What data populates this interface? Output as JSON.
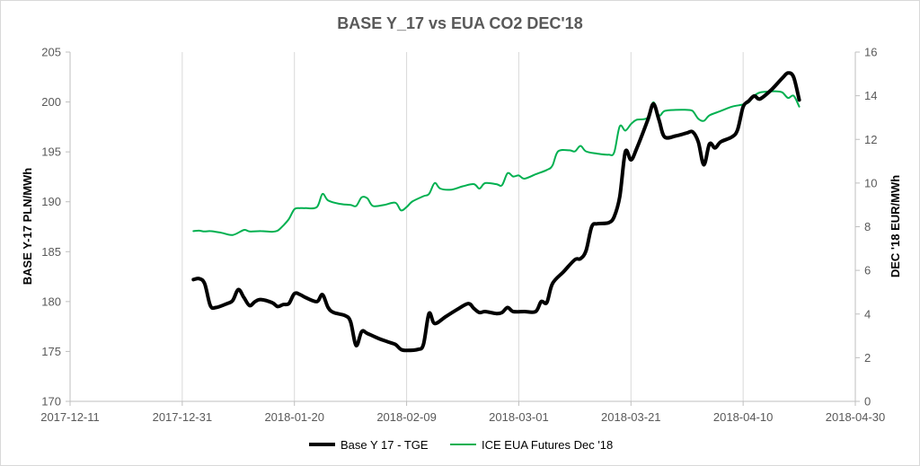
{
  "chart_data": {
    "type": "line",
    "title": "BASE Y_17 vs EUA CO2 DEC'18",
    "ylabel": "BASE Y-17 PLN/MWh",
    "y2label": "DEC '18  EUR/MWh",
    "ylim": [
      170,
      205
    ],
    "y2lim": [
      0,
      16
    ],
    "yticks": [
      "170",
      "175",
      "180",
      "185",
      "190",
      "195",
      "200",
      "205"
    ],
    "y2ticks": [
      "0",
      "2",
      "4",
      "6",
      "8",
      "10",
      "12",
      "14",
      "16"
    ],
    "xlim": [
      "2017-12-11",
      "2018-04-30"
    ],
    "xticks": [
      "2017-12-11",
      "2017-12-31",
      "2018-01-20",
      "2018-02-09",
      "2018-03-01",
      "2018-03-21",
      "2018-04-10",
      "2018-04-30"
    ],
    "grid": "vertical",
    "legend_position": "bottom",
    "series": [
      {
        "name": "Base Y 17 - TGE",
        "axis": "left",
        "color": "#000000",
        "points": [
          [
            "2018-01-02",
            182.2
          ],
          [
            "2018-01-03",
            182.3
          ],
          [
            "2018-01-04",
            181.8
          ],
          [
            "2018-01-05",
            179.6
          ],
          [
            "2018-01-06",
            179.4
          ],
          [
            "2018-01-08",
            179.8
          ],
          [
            "2018-01-09",
            180.1
          ],
          [
            "2018-01-10",
            181.2
          ],
          [
            "2018-01-11",
            180.4
          ],
          [
            "2018-01-12",
            179.6
          ],
          [
            "2018-01-13",
            180.0
          ],
          [
            "2018-01-14",
            180.2
          ],
          [
            "2018-01-16",
            179.9
          ],
          [
            "2018-01-17",
            179.5
          ],
          [
            "2018-01-18",
            179.7
          ],
          [
            "2018-01-19",
            179.8
          ],
          [
            "2018-01-20",
            180.8
          ],
          [
            "2018-01-21",
            180.7
          ],
          [
            "2018-01-22",
            180.4
          ],
          [
            "2018-01-24",
            180.0
          ],
          [
            "2018-01-25",
            180.7
          ],
          [
            "2018-01-26",
            179.4
          ],
          [
            "2018-01-27",
            178.9
          ],
          [
            "2018-01-29",
            178.6
          ],
          [
            "2018-01-30",
            178.0
          ],
          [
            "2018-01-31",
            175.6
          ],
          [
            "2018-02-01",
            177.0
          ],
          [
            "2018-02-02",
            176.8
          ],
          [
            "2018-02-04",
            176.3
          ],
          [
            "2018-02-06",
            175.9
          ],
          [
            "2018-02-07",
            175.7
          ],
          [
            "2018-02-08",
            175.2
          ],
          [
            "2018-02-09",
            175.1
          ],
          [
            "2018-02-11",
            175.2
          ],
          [
            "2018-02-12",
            175.7
          ],
          [
            "2018-02-13",
            178.8
          ],
          [
            "2018-02-14",
            177.8
          ],
          [
            "2018-02-16",
            178.5
          ],
          [
            "2018-02-18",
            179.2
          ],
          [
            "2018-02-20",
            179.8
          ],
          [
            "2018-02-21",
            179.3
          ],
          [
            "2018-02-22",
            178.9
          ],
          [
            "2018-02-23",
            179.0
          ],
          [
            "2018-02-25",
            178.8
          ],
          [
            "2018-02-26",
            178.9
          ],
          [
            "2018-02-27",
            179.4
          ],
          [
            "2018-02-28",
            179.0
          ],
          [
            "2018-03-02",
            179.0
          ],
          [
            "2018-03-04",
            179.0
          ],
          [
            "2018-03-05",
            180.0
          ],
          [
            "2018-03-06",
            179.9
          ],
          [
            "2018-03-07",
            181.8
          ],
          [
            "2018-03-09",
            183.0
          ],
          [
            "2018-03-11",
            184.2
          ],
          [
            "2018-03-12",
            184.3
          ],
          [
            "2018-03-13",
            185.1
          ],
          [
            "2018-03-14",
            187.5
          ],
          [
            "2018-03-15",
            187.8
          ],
          [
            "2018-03-17",
            187.9
          ],
          [
            "2018-03-18",
            188.5
          ],
          [
            "2018-03-19",
            190.5
          ],
          [
            "2018-03-20",
            195.0
          ],
          [
            "2018-03-21",
            194.2
          ],
          [
            "2018-03-22",
            195.3
          ],
          [
            "2018-03-24",
            198.2
          ],
          [
            "2018-03-25",
            199.8
          ],
          [
            "2018-03-26",
            198.2
          ],
          [
            "2018-03-27",
            196.5
          ],
          [
            "2018-03-29",
            196.6
          ],
          [
            "2018-03-31",
            196.9
          ],
          [
            "2018-04-01",
            197.0
          ],
          [
            "2018-04-02",
            196.0
          ],
          [
            "2018-04-03",
            193.7
          ],
          [
            "2018-04-04",
            195.8
          ],
          [
            "2018-04-05",
            195.4
          ],
          [
            "2018-04-06",
            196.0
          ],
          [
            "2018-04-08",
            196.5
          ],
          [
            "2018-04-09",
            197.2
          ],
          [
            "2018-04-10",
            199.5
          ],
          [
            "2018-04-11",
            200.1
          ],
          [
            "2018-04-12",
            200.6
          ],
          [
            "2018-04-13",
            200.3
          ],
          [
            "2018-04-15",
            201.2
          ],
          [
            "2018-04-17",
            202.4
          ],
          [
            "2018-04-18",
            202.9
          ],
          [
            "2018-04-19",
            202.5
          ],
          [
            "2018-04-20",
            200.2
          ]
        ]
      },
      {
        "name": "ICE EUA Futures Dec '18",
        "axis": "right",
        "color": "#00b050",
        "points": [
          [
            "2018-01-02",
            7.8
          ],
          [
            "2018-01-03",
            7.82
          ],
          [
            "2018-01-04",
            7.78
          ],
          [
            "2018-01-05",
            7.8
          ],
          [
            "2018-01-07",
            7.72
          ],
          [
            "2018-01-09",
            7.62
          ],
          [
            "2018-01-11",
            7.85
          ],
          [
            "2018-01-12",
            7.78
          ],
          [
            "2018-01-14",
            7.8
          ],
          [
            "2018-01-16",
            7.77
          ],
          [
            "2018-01-17",
            7.82
          ],
          [
            "2018-01-18",
            8.05
          ],
          [
            "2018-01-19",
            8.35
          ],
          [
            "2018-01-20",
            8.8
          ],
          [
            "2018-01-21",
            8.85
          ],
          [
            "2018-01-22",
            8.85
          ],
          [
            "2018-01-24",
            8.9
          ],
          [
            "2018-01-25",
            9.5
          ],
          [
            "2018-01-26",
            9.2
          ],
          [
            "2018-01-28",
            9.05
          ],
          [
            "2018-01-30",
            9.0
          ],
          [
            "2018-01-31",
            8.95
          ],
          [
            "2018-02-01",
            9.35
          ],
          [
            "2018-02-02",
            9.3
          ],
          [
            "2018-02-03",
            8.95
          ],
          [
            "2018-02-05",
            9.0
          ],
          [
            "2018-02-07",
            9.1
          ],
          [
            "2018-02-08",
            8.75
          ],
          [
            "2018-02-09",
            8.9
          ],
          [
            "2018-02-10",
            9.15
          ],
          [
            "2018-02-12",
            9.4
          ],
          [
            "2018-02-13",
            9.5
          ],
          [
            "2018-02-14",
            10.0
          ],
          [
            "2018-02-15",
            9.75
          ],
          [
            "2018-02-17",
            9.7
          ],
          [
            "2018-02-19",
            9.85
          ],
          [
            "2018-02-21",
            9.95
          ],
          [
            "2018-02-22",
            9.75
          ],
          [
            "2018-02-23",
            10.0
          ],
          [
            "2018-02-25",
            9.95
          ],
          [
            "2018-02-26",
            9.9
          ],
          [
            "2018-02-27",
            10.45
          ],
          [
            "2018-02-28",
            10.3
          ],
          [
            "2018-03-01",
            10.35
          ],
          [
            "2018-03-02",
            10.2
          ],
          [
            "2018-03-04",
            10.4
          ],
          [
            "2018-03-06",
            10.6
          ],
          [
            "2018-03-07",
            10.8
          ],
          [
            "2018-03-08",
            11.45
          ],
          [
            "2018-03-10",
            11.5
          ],
          [
            "2018-03-11",
            11.45
          ],
          [
            "2018-03-12",
            11.7
          ],
          [
            "2018-03-13",
            11.45
          ],
          [
            "2018-03-15",
            11.35
          ],
          [
            "2018-03-17",
            11.3
          ],
          [
            "2018-03-18",
            11.4
          ],
          [
            "2018-03-19",
            12.6
          ],
          [
            "2018-03-20",
            12.4
          ],
          [
            "2018-03-21",
            12.7
          ],
          [
            "2018-03-22",
            12.9
          ],
          [
            "2018-03-24",
            13.0
          ],
          [
            "2018-03-25",
            13.7
          ],
          [
            "2018-03-26",
            13.1
          ],
          [
            "2018-03-27",
            13.3
          ],
          [
            "2018-03-29",
            13.35
          ],
          [
            "2018-03-31",
            13.35
          ],
          [
            "2018-04-01",
            13.3
          ],
          [
            "2018-04-02",
            12.95
          ],
          [
            "2018-04-03",
            12.85
          ],
          [
            "2018-04-04",
            13.1
          ],
          [
            "2018-04-06",
            13.3
          ],
          [
            "2018-04-08",
            13.5
          ],
          [
            "2018-04-10",
            13.6
          ],
          [
            "2018-04-11",
            13.7
          ],
          [
            "2018-04-12",
            14.0
          ],
          [
            "2018-04-13",
            14.15
          ],
          [
            "2018-04-15",
            14.2
          ],
          [
            "2018-04-16",
            14.2
          ],
          [
            "2018-04-17",
            14.15
          ],
          [
            "2018-04-18",
            13.9
          ],
          [
            "2018-04-19",
            14.0
          ],
          [
            "2018-04-20",
            13.5
          ]
        ]
      }
    ]
  }
}
